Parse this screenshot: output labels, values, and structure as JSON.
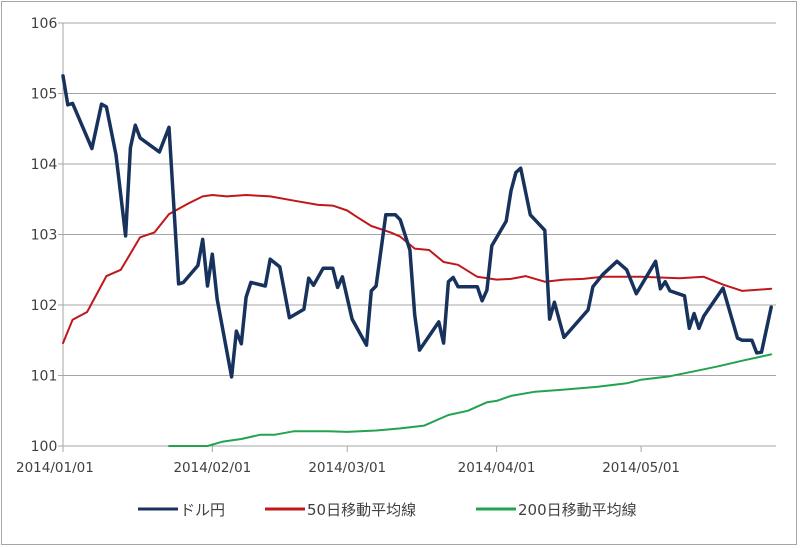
{
  "chart_data": {
    "type": "line",
    "title": "",
    "xlabel": "",
    "ylabel": "",
    "ylim": [
      100,
      106
    ],
    "yticks": [
      "100",
      "101",
      "102",
      "103",
      "104",
      "105",
      "106"
    ],
    "xticks": [
      "2014/01/01",
      "2014/02/01",
      "2014/03/01",
      "2014/04/01",
      "2014/05/01"
    ],
    "grid": "horizontal",
    "legend_position": "bottom",
    "series": [
      {
        "name": "ドル円",
        "color": "#17325c",
        "points": [
          [
            "2014/01/01",
            105.25
          ],
          [
            "2014/01/02",
            104.84
          ],
          [
            "2014/01/03",
            104.86
          ],
          [
            "2014/01/07",
            104.22
          ],
          [
            "2014/01/09",
            104.85
          ],
          [
            "2014/01/10",
            104.81
          ],
          [
            "2014/01/12",
            104.13
          ],
          [
            "2014/01/14",
            102.98
          ],
          [
            "2014/01/15",
            104.23
          ],
          [
            "2014/01/16",
            104.55
          ],
          [
            "2014/01/17",
            104.37
          ],
          [
            "2014/01/21",
            104.17
          ],
          [
            "2014/01/23",
            104.52
          ],
          [
            "2014/01/25",
            102.3
          ],
          [
            "2014/01/26",
            102.32
          ],
          [
            "2014/01/29",
            102.56
          ],
          [
            "2014/01/30",
            102.93
          ],
          [
            "2014/01/31",
            102.27
          ],
          [
            "2014/02/01",
            102.72
          ],
          [
            "2014/02/02",
            102.08
          ],
          [
            "2014/02/05",
            100.98
          ],
          [
            "2014/02/06",
            101.63
          ],
          [
            "2014/02/07",
            101.45
          ],
          [
            "2014/02/08",
            102.11
          ],
          [
            "2014/02/09",
            102.32
          ],
          [
            "2014/02/12",
            102.27
          ],
          [
            "2014/02/13",
            102.65
          ],
          [
            "2014/02/15",
            102.54
          ],
          [
            "2014/02/17",
            101.82
          ],
          [
            "2014/02/20",
            101.94
          ],
          [
            "2014/02/21",
            102.38
          ],
          [
            "2014/02/22",
            102.28
          ],
          [
            "2014/02/24",
            102.52
          ],
          [
            "2014/02/26",
            102.52
          ],
          [
            "2014/02/27",
            102.25
          ],
          [
            "2014/02/28",
            102.4
          ],
          [
            "2014/03/02",
            101.8
          ],
          [
            "2014/03/05",
            101.43
          ],
          [
            "2014/03/06",
            102.2
          ],
          [
            "2014/03/07",
            102.27
          ],
          [
            "2014/03/09",
            103.28
          ],
          [
            "2014/03/11",
            103.28
          ],
          [
            "2014/03/12",
            103.21
          ],
          [
            "2014/03/14",
            102.78
          ],
          [
            "2014/03/15",
            101.86
          ],
          [
            "2014/03/16",
            101.36
          ],
          [
            "2014/03/20",
            101.76
          ],
          [
            "2014/03/21",
            101.46
          ],
          [
            "2014/03/22",
            102.33
          ],
          [
            "2014/03/23",
            102.39
          ],
          [
            "2014/03/24",
            102.26
          ],
          [
            "2014/03/28",
            102.26
          ],
          [
            "2014/03/29",
            102.06
          ],
          [
            "2014/03/30",
            102.21
          ],
          [
            "2014/03/31",
            102.84
          ],
          [
            "2014/04/03",
            103.19
          ],
          [
            "2014/04/04",
            103.62
          ],
          [
            "2014/04/05",
            103.88
          ],
          [
            "2014/04/06",
            103.94
          ],
          [
            "2014/04/08",
            103.28
          ],
          [
            "2014/04/11",
            103.06
          ],
          [
            "2014/04/12",
            101.8
          ],
          [
            "2014/04/13",
            102.04
          ],
          [
            "2014/04/15",
            101.54
          ],
          [
            "2014/04/20",
            101.93
          ],
          [
            "2014/04/21",
            102.26
          ],
          [
            "2014/04/23",
            102.43
          ],
          [
            "2014/04/26",
            102.62
          ],
          [
            "2014/04/28",
            102.5
          ],
          [
            "2014/04/30",
            102.16
          ],
          [
            "2014/05/04",
            102.62
          ],
          [
            "2014/05/05",
            102.23
          ],
          [
            "2014/05/06",
            102.33
          ],
          [
            "2014/05/07",
            102.2
          ],
          [
            "2014/05/10",
            102.13
          ],
          [
            "2014/05/11",
            101.67
          ],
          [
            "2014/05/12",
            101.88
          ],
          [
            "2014/05/13",
            101.67
          ],
          [
            "2014/05/14",
            101.84
          ],
          [
            "2014/05/18",
            102.24
          ],
          [
            "2014/05/21",
            101.53
          ],
          [
            "2014/05/22",
            101.5
          ],
          [
            "2014/05/24",
            101.5
          ],
          [
            "2014/05/25",
            101.32
          ],
          [
            "2014/05/26",
            101.33
          ],
          [
            "2014/05/28",
            101.97
          ]
        ]
      },
      {
        "name": "50日移動平均線",
        "color": "#c0171a",
        "points": [
          [
            "2014/01/01",
            101.46
          ],
          [
            "2014/01/03",
            101.79
          ],
          [
            "2014/01/06",
            101.9
          ],
          [
            "2014/01/10",
            102.41
          ],
          [
            "2014/01/13",
            102.5
          ],
          [
            "2014/01/17",
            102.96
          ],
          [
            "2014/01/20",
            103.03
          ],
          [
            "2014/01/23",
            103.29
          ],
          [
            "2014/01/27",
            103.44
          ],
          [
            "2014/01/30",
            103.54
          ],
          [
            "2014/02/01",
            103.56
          ],
          [
            "2014/02/04",
            103.54
          ],
          [
            "2014/02/08",
            103.56
          ],
          [
            "2014/02/13",
            103.54
          ],
          [
            "2014/02/18",
            103.48
          ],
          [
            "2014/02/23",
            103.42
          ],
          [
            "2014/02/26",
            103.41
          ],
          [
            "2014/03/01",
            103.34
          ],
          [
            "2014/03/03",
            103.25
          ],
          [
            "2014/03/06",
            103.12
          ],
          [
            "2014/03/10",
            103.03
          ],
          [
            "2014/03/12",
            102.97
          ],
          [
            "2014/03/15",
            102.8
          ],
          [
            "2014/03/18",
            102.78
          ],
          [
            "2014/03/21",
            102.61
          ],
          [
            "2014/03/24",
            102.57
          ],
          [
            "2014/03/28",
            102.4
          ],
          [
            "2014/04/01",
            102.36
          ],
          [
            "2014/04/04",
            102.37
          ],
          [
            "2014/04/07",
            102.41
          ],
          [
            "2014/04/11",
            102.33
          ],
          [
            "2014/04/15",
            102.36
          ],
          [
            "2014/04/19",
            102.37
          ],
          [
            "2014/04/23",
            102.4
          ],
          [
            "2014/05/01",
            102.4
          ],
          [
            "2014/05/09",
            102.38
          ],
          [
            "2014/05/14",
            102.4
          ],
          [
            "2014/05/18",
            102.29
          ],
          [
            "2014/05/22",
            102.2
          ],
          [
            "2014/05/28",
            102.23
          ]
        ]
      },
      {
        "name": "200日移動平均線",
        "color": "#22a34f",
        "points": [
          [
            "2014/01/23",
            100.0
          ],
          [
            "2014/01/31",
            100.0
          ],
          [
            "2014/02/03",
            100.06
          ],
          [
            "2014/02/07",
            100.1
          ],
          [
            "2014/02/11",
            100.16
          ],
          [
            "2014/02/14",
            100.16
          ],
          [
            "2014/02/18",
            100.21
          ],
          [
            "2014/02/25",
            100.21
          ],
          [
            "2014/03/01",
            100.2
          ],
          [
            "2014/03/07",
            100.22
          ],
          [
            "2014/03/12",
            100.25
          ],
          [
            "2014/03/17",
            100.29
          ],
          [
            "2014/03/22",
            100.44
          ],
          [
            "2014/03/26",
            100.5
          ],
          [
            "2014/03/30",
            100.62
          ],
          [
            "2014/04/01",
            100.64
          ],
          [
            "2014/04/04",
            100.71
          ],
          [
            "2014/04/09",
            100.77
          ],
          [
            "2014/04/15",
            100.8
          ],
          [
            "2014/04/22",
            100.84
          ],
          [
            "2014/04/28",
            100.89
          ],
          [
            "2014/05/01",
            100.94
          ],
          [
            "2014/05/07",
            100.99
          ],
          [
            "2014/05/12",
            101.06
          ],
          [
            "2014/05/17",
            101.13
          ],
          [
            "2014/05/22",
            101.21
          ],
          [
            "2014/05/28",
            101.3
          ]
        ]
      }
    ]
  },
  "legend": {
    "items": [
      {
        "label": "ドル円",
        "color": "#17325c"
      },
      {
        "label": "50日移動平均線",
        "color": "#c0171a"
      },
      {
        "label": "200日移動平均線",
        "color": "#22a34f"
      }
    ]
  },
  "colors": {
    "gridline": "#a6a6a6",
    "axis_text": "#404040",
    "border": "#a6a6a6"
  }
}
